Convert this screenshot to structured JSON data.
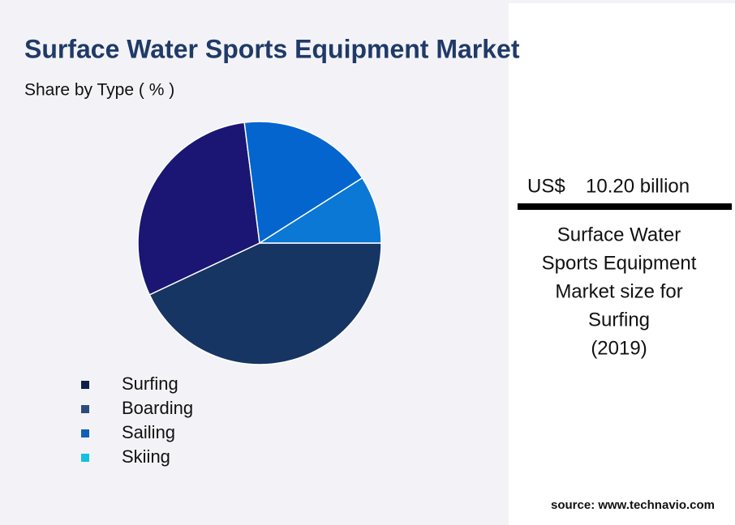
{
  "chart_data": {
    "type": "pie",
    "title": "Surface Water Sports Equipment Market",
    "subtitle": "Share by Type ( % )",
    "categories": [
      "Surfing",
      "Boarding",
      "Sailing",
      "Skiing"
    ],
    "values": [
      43,
      30,
      18,
      9
    ],
    "colors": [
      "#163563",
      "#1b1673",
      "#0565cf",
      "#0a78d4"
    ],
    "legend_colors": [
      "#0f1f4d",
      "#2e4a7d",
      "#1060b8",
      "#12c0e0"
    ]
  },
  "callout": {
    "currency": "US$",
    "amount": "10.20 billion",
    "description": [
      "Surface Water",
      "Sports Equipment",
      "Market size for",
      "Surfing",
      "(2019)"
    ],
    "source": "source: www.technavio.com"
  }
}
